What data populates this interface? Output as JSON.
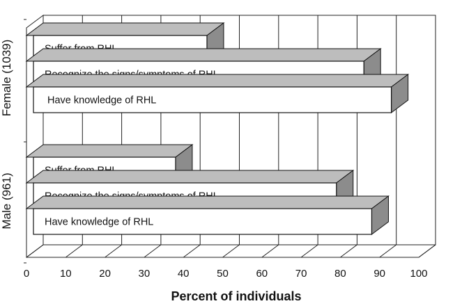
{
  "chart_data": {
    "type": "bar",
    "orientation": "horizontal",
    "style": "3d",
    "title": "",
    "xlabel": "Percent of individuals",
    "ylabel": "",
    "xlim": [
      0,
      100
    ],
    "x_ticks": [
      0,
      10,
      20,
      30,
      40,
      50,
      60,
      70,
      80,
      90,
      100
    ],
    "grid": true,
    "groups": [
      {
        "name": "Female (1039)",
        "bars": [
          {
            "label": "Suffer from RHL",
            "value": 46
          },
          {
            "label": "Recognize the signs/symptoms of RHL",
            "value": 86
          },
          {
            "label": "Have knowledge of RHL",
            "value": 93
          }
        ]
      },
      {
        "name": "Male (961)",
        "bars": [
          {
            "label": "Suffer from RHL",
            "value": 38
          },
          {
            "label": "Recognize the signs/symptoms of RHL",
            "value": 79
          },
          {
            "label": "Have knowledge of RHL",
            "value": 88
          }
        ]
      }
    ],
    "colors": {
      "bar_front": "#ffffff",
      "bar_side": "#8c8c8c",
      "bar_top": "#bdbdbd",
      "outline": "#111111",
      "grid": "#222222"
    }
  }
}
